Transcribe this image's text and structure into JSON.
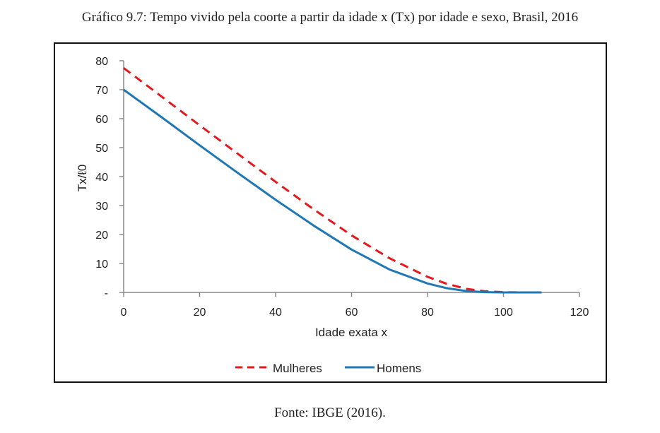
{
  "figure": {
    "title": "Gráfico 9.7: Tempo vivido pela coorte a partir da idade x (Tx) por idade e sexo, Brasil, 2016",
    "source": "Fonte: IBGE (2016)."
  },
  "chart_data": {
    "type": "line",
    "title": "",
    "xlabel": "Idade exata x",
    "ylabel": "Tx/ℓ0",
    "xlim": [
      0,
      120
    ],
    "ylim": [
      0,
      80
    ],
    "x_ticks": [
      "0",
      "20",
      "40",
      "60",
      "80",
      "100",
      "120"
    ],
    "y_ticks": [
      "-",
      "10",
      "20",
      "30",
      "40",
      "50",
      "60",
      "70",
      "80"
    ],
    "grid": false,
    "legend_position": "bottom",
    "series": [
      {
        "name": "Mulheres",
        "color": "#e31a1c",
        "style": "dashed",
        "x": [
          0,
          10,
          20,
          30,
          40,
          50,
          60,
          70,
          80,
          85,
          90,
          95,
          100,
          105,
          110
        ],
        "y": [
          77.5,
          67.6,
          57.7,
          47.9,
          38.2,
          28.7,
          19.7,
          11.8,
          5.4,
          3.0,
          1.3,
          0.4,
          0.1,
          0.0,
          0.0
        ]
      },
      {
        "name": "Homens",
        "color": "#1f78b4",
        "style": "solid",
        "x": [
          0,
          10,
          20,
          30,
          40,
          50,
          60,
          70,
          80,
          85,
          90,
          95,
          100,
          105,
          110
        ],
        "y": [
          70.0,
          60.5,
          50.8,
          41.3,
          32.0,
          23.1,
          14.8,
          7.9,
          3.1,
          1.5,
          0.5,
          0.1,
          0.0,
          0.0,
          0.0
        ]
      }
    ]
  }
}
